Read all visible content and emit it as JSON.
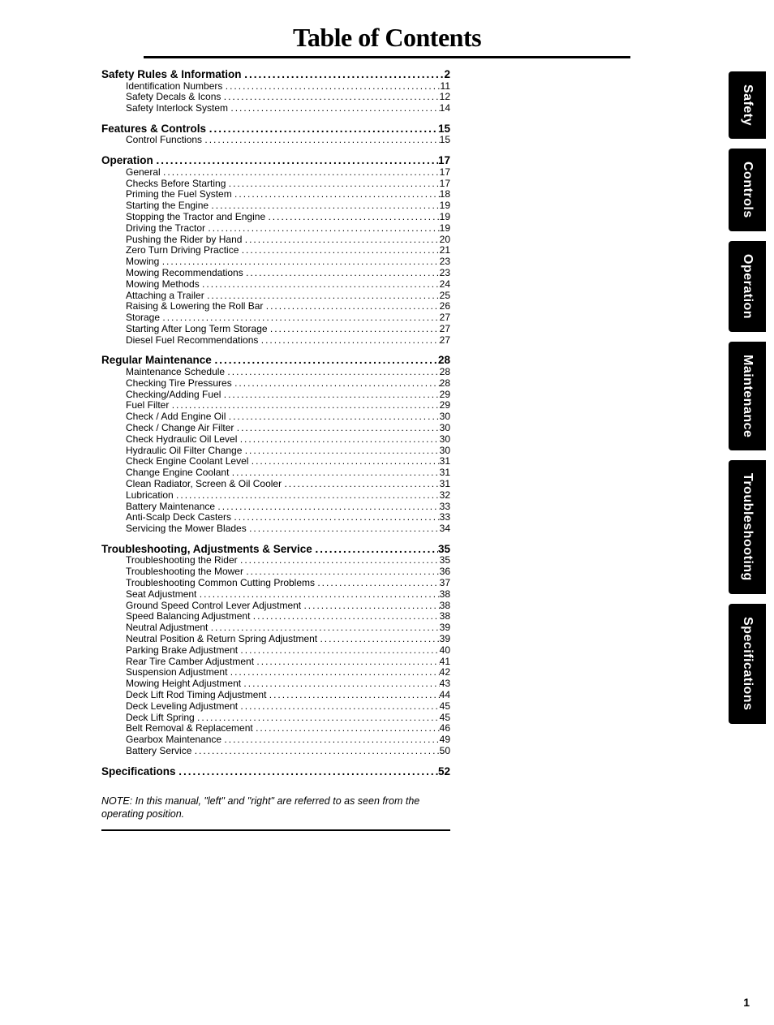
{
  "title": "Table of Contents",
  "page_number": "1",
  "note": "NOTE: In this manual, \"left\" and \"right\" are referred to as seen from the operating position.",
  "tabs": [
    "Safety",
    "Controls",
    "Operation",
    "Maintenance",
    "Troubleshooting",
    "Specifications"
  ],
  "sections": [
    {
      "heading": {
        "label": "Safety Rules & Information",
        "page": "2"
      },
      "items": [
        {
          "label": "Identification Numbers",
          "page": "11"
        },
        {
          "label": "Safety Decals & Icons",
          "page": "12"
        },
        {
          "label": "Safety Interlock System",
          "page": "14"
        }
      ]
    },
    {
      "heading": {
        "label": "Features & Controls",
        "page": "15"
      },
      "items": [
        {
          "label": "Control Functions",
          "page": "15"
        }
      ]
    },
    {
      "heading": {
        "label": "Operation",
        "page": "17"
      },
      "items": [
        {
          "label": "General",
          "page": "17"
        },
        {
          "label": "Checks Before Starting",
          "page": "17"
        },
        {
          "label": "Priming the Fuel System",
          "page": "18"
        },
        {
          "label": "Starting the Engine",
          "page": "19"
        },
        {
          "label": "Stopping the Tractor and Engine",
          "page": "19"
        },
        {
          "label": "Driving the Tractor",
          "page": "19"
        },
        {
          "label": "Pushing the Rider by Hand",
          "page": "20"
        },
        {
          "label": "Zero Turn Driving Practice",
          "page": "21"
        },
        {
          "label": "Mowing",
          "page": "23"
        },
        {
          "label": "Mowing Recommendations",
          "page": "23"
        },
        {
          "label": "Mowing Methods",
          "page": "24"
        },
        {
          "label": "Attaching a Trailer",
          "page": "25"
        },
        {
          "label": "Raising & Lowering the Roll Bar",
          "page": "26"
        },
        {
          "label": "Storage",
          "page": "27"
        },
        {
          "label": "Starting After Long Term Storage",
          "page": "27"
        },
        {
          "label": "Diesel Fuel Recommendations",
          "page": "27"
        }
      ]
    },
    {
      "heading": {
        "label": "Regular Maintenance",
        "page": "28"
      },
      "items": [
        {
          "label": "Maintenance Schedule",
          "page": "28"
        },
        {
          "label": "Checking Tire Pressures",
          "page": "28"
        },
        {
          "label": "Checking/Adding Fuel",
          "page": "29"
        },
        {
          "label": "Fuel Filter",
          "page": "29"
        },
        {
          "label": "Check / Add Engine Oil",
          "page": "30"
        },
        {
          "label": "Check / Change Air Filter",
          "page": "30"
        },
        {
          "label": "Check Hydraulic Oil Level",
          "page": "30"
        },
        {
          "label": "Hydraulic Oil Filter Change",
          "page": "30"
        },
        {
          "label": "Check Engine Coolant Level",
          "page": "31"
        },
        {
          "label": "Change Engine Coolant",
          "page": "31"
        },
        {
          "label": "Clean Radiator, Screen & Oil Cooler",
          "page": "31"
        },
        {
          "label": "Lubrication",
          "page": "32"
        },
        {
          "label": "Battery Maintenance",
          "page": "33"
        },
        {
          "label": "Anti-Scalp Deck Casters",
          "page": "33"
        },
        {
          "label": "Servicing the Mower Blades",
          "page": "34"
        }
      ]
    },
    {
      "heading": {
        "label": "Troubleshooting, Adjustments & Service",
        "page": "35"
      },
      "items": [
        {
          "label": "Troubleshooting the Rider",
          "page": "35"
        },
        {
          "label": "Troubleshooting the Mower",
          "page": "36"
        },
        {
          "label": "Troubleshooting Common Cutting Problems",
          "page": "37"
        },
        {
          "label": "Seat Adjustment",
          "page": "38"
        },
        {
          "label": "Ground Speed Control Lever Adjustment",
          "page": "38"
        },
        {
          "label": "Speed Balancing Adjustment",
          "page": "38"
        },
        {
          "label": "Neutral Adjustment",
          "page": "39"
        },
        {
          "label": "Neutral Position & Return Spring Adjustment",
          "page": "39"
        },
        {
          "label": "Parking Brake Adjustment",
          "page": "40"
        },
        {
          "label": "Rear Tire Camber Adjustment",
          "page": "41"
        },
        {
          "label": "Suspension Adjustment",
          "page": "42"
        },
        {
          "label": "Mowing Height Adjustment",
          "page": "43"
        },
        {
          "label": "Deck Lift Rod Timing Adjustment",
          "page": "44"
        },
        {
          "label": "Deck Leveling Adjustment",
          "page": "45"
        },
        {
          "label": "Deck Lift Spring",
          "page": "45"
        },
        {
          "label": "Belt Removal & Replacement",
          "page": "46"
        },
        {
          "label": "Gearbox Maintenance",
          "page": "49"
        },
        {
          "label": "Battery Service",
          "page": "50"
        }
      ]
    },
    {
      "heading": {
        "label": "Specifications",
        "page": "52"
      },
      "items": []
    }
  ]
}
